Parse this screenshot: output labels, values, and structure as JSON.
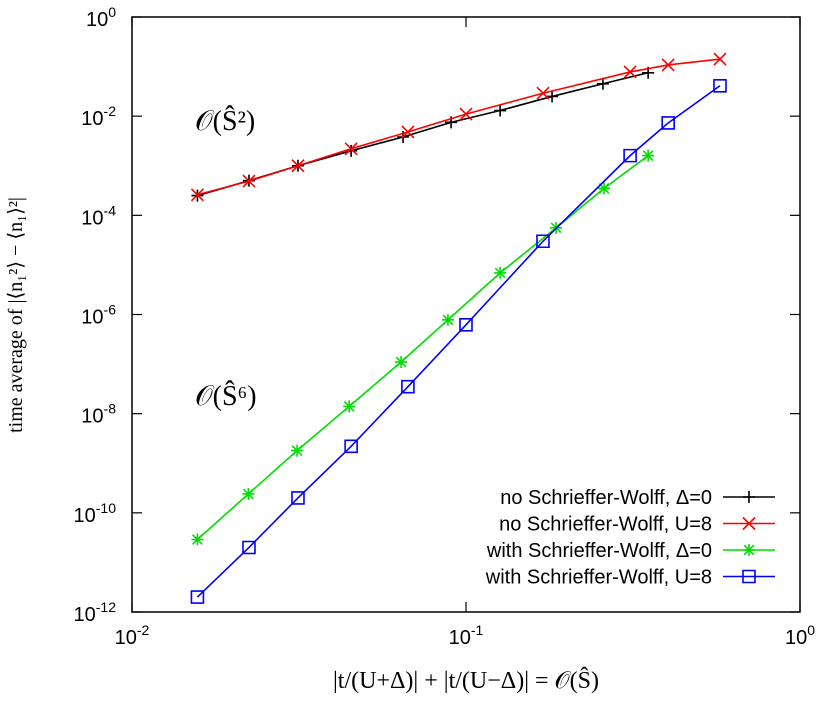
{
  "chart_data": {
    "type": "line",
    "log_x": true,
    "log_y": true,
    "xlabel": "|t/(U+Δ)| + |t/(U−Δ)| = 𝒪(Ŝ)",
    "ylabel": "time average of |⟨n₁²⟩ − ⟨n₁⟩²|",
    "annotations": [
      "𝒪(Ŝ²)",
      "𝒪(Ŝ⁶)"
    ],
    "legend": "lower right",
    "xlim": [
      0.01,
      1
    ],
    "ylim": [
      1e-12,
      1
    ],
    "xticks": [
      {
        "value": 0.01,
        "label": "10",
        "exponent": "-2"
      },
      {
        "value": 0.1,
        "label": "10",
        "exponent": "-1"
      },
      {
        "value": 1,
        "label": "10",
        "exponent": "0"
      }
    ],
    "yticks": [
      {
        "value": 1e-12,
        "label": "10",
        "exponent": "-12"
      },
      {
        "value": 1e-10,
        "label": "10",
        "exponent": "-10"
      },
      {
        "value": 1e-08,
        "label": "10",
        "exponent": "-8"
      },
      {
        "value": 1e-06,
        "label": "10",
        "exponent": "-6"
      },
      {
        "value": 0.0001,
        "label": "10",
        "exponent": "-4"
      },
      {
        "value": 0.01,
        "label": "10",
        "exponent": "-2"
      },
      {
        "value": 1,
        "label": "10",
        "exponent": "0"
      }
    ],
    "series": [
      {
        "name": "no Schrieffer-Wolff, Δ=0",
        "color": "#000000",
        "marker": "plus",
        "x": [
          0.0157,
          0.0224,
          0.0314,
          0.0453,
          0.0648,
          0.0902,
          0.1265,
          0.181,
          0.257,
          0.351
        ],
        "values": [
          0.00025,
          0.0005,
          0.001,
          0.002,
          0.0038,
          0.0075,
          0.013,
          0.025,
          0.045,
          0.075
        ]
      },
      {
        "name": "no Schrieffer-Wolff, U=8",
        "color": "#ff0000",
        "marker": "cross",
        "x": [
          0.0157,
          0.0224,
          0.0314,
          0.0453,
          0.067,
          0.1,
          0.17,
          0.31,
          0.403,
          0.576
        ],
        "values": [
          0.00026,
          0.00049,
          0.001,
          0.0022,
          0.0048,
          0.011,
          0.029,
          0.078,
          0.108,
          0.142
        ]
      },
      {
        "name": "with Schrieffer-Wolff, Δ=0",
        "color": "#00dd00",
        "marker": "star",
        "x": [
          0.0157,
          0.0223,
          0.0312,
          0.0447,
          0.0639,
          0.0883,
          0.1265,
          0.186,
          0.259,
          0.351
        ],
        "values": [
          2.9e-11,
          2.4e-10,
          1.8e-09,
          1.4e-08,
          1.1e-07,
          7.8e-07,
          6.9e-06,
          5.6e-05,
          0.00035,
          0.0016
        ]
      },
      {
        "name": "with Schrieffer-Wolff, U=8",
        "color": "#0000ff",
        "marker": "square",
        "x": [
          0.0157,
          0.0224,
          0.0314,
          0.0453,
          0.067,
          0.1,
          0.17,
          0.31,
          0.403,
          0.576
        ],
        "values": [
          2e-12,
          2e-11,
          2e-10,
          2.2e-09,
          3.5e-08,
          6.2e-07,
          3e-05,
          0.0016,
          0.0073,
          0.041
        ]
      }
    ]
  }
}
